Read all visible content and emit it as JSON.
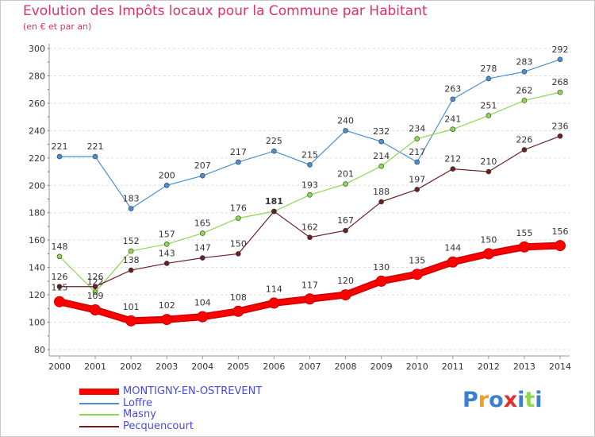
{
  "header": {
    "title": "Evolution des Impôts locaux pour la Commune par Habitant",
    "subtitle": "(en € et par an)"
  },
  "chart_data": {
    "type": "line",
    "title": "Evolution des Impôts locaux pour la Commune par Habitant",
    "ylabel": "(en € et par an)",
    "xlabel": "",
    "ylim": [
      80,
      300
    ],
    "yticks": [
      80,
      100,
      120,
      140,
      160,
      180,
      200,
      220,
      240,
      260,
      280,
      300
    ],
    "grid": "horizontal",
    "categories": [
      "2000",
      "2001",
      "2002",
      "2003",
      "2004",
      "2005",
      "2006",
      "2007",
      "2008",
      "2009",
      "2010",
      "2011",
      "2012",
      "2013",
      "2014"
    ],
    "series": [
      {
        "name": "Loffre",
        "color": "#4a90d0",
        "values": [
          221,
          221,
          183,
          200,
          207,
          217,
          225,
          215,
          240,
          232,
          217,
          263,
          278,
          283,
          292
        ]
      },
      {
        "name": "Masny",
        "color": "#8ed850",
        "values": [
          148,
          122,
          152,
          157,
          165,
          176,
          181,
          193,
          201,
          214,
          234,
          241,
          251,
          262,
          268
        ]
      },
      {
        "name": "Pecquencourt",
        "color": "#6a2020",
        "values": [
          126,
          126,
          138,
          143,
          147,
          150,
          181,
          162,
          167,
          188,
          197,
          212,
          210,
          226,
          236
        ]
      },
      {
        "name": "MONTIGNY-EN-OSTREVENT",
        "color": "#ff0000",
        "values": [
          115,
          109,
          101,
          102,
          104,
          108,
          114,
          117,
          120,
          130,
          135,
          144,
          150,
          155,
          156
        ]
      }
    ],
    "labels_shown": {
      "Loffre": [
        221,
        221,
        183,
        200,
        207,
        217,
        225,
        215,
        240,
        232,
        217,
        263,
        278,
        283,
        292
      ],
      "Masny": [
        148,
        122,
        152,
        157,
        165,
        176,
        null,
        193,
        201,
        214,
        234,
        241,
        251,
        262,
        268
      ],
      "Pecquencourt": [
        126,
        126,
        138,
        143,
        147,
        150,
        181,
        162,
        167,
        188,
        197,
        212,
        210,
        226,
        236
      ],
      "MONTIGNY-EN-OSTREVENT": [
        115,
        109,
        101,
        102,
        104,
        108,
        114,
        117,
        120,
        130,
        135,
        144,
        150,
        155,
        156
      ]
    },
    "legend_position": "bottom-left"
  },
  "legend": [
    {
      "name": "MONTIGNY-EN-OSTREVENT",
      "color": "#ff0000"
    },
    {
      "name": "Loffre",
      "color": "#4a90d0"
    },
    {
      "name": "Masny",
      "color": "#8ed850"
    },
    {
      "name": "Pecquencourt",
      "color": "#6a2020"
    }
  ],
  "logo": {
    "text": "Proxiti",
    "colors": [
      "#3a7fd0",
      "#f0a020",
      "#3a7fd0",
      "#e03030",
      "#3a7fd0",
      "#8ed850",
      "#3a7fd0"
    ]
  }
}
